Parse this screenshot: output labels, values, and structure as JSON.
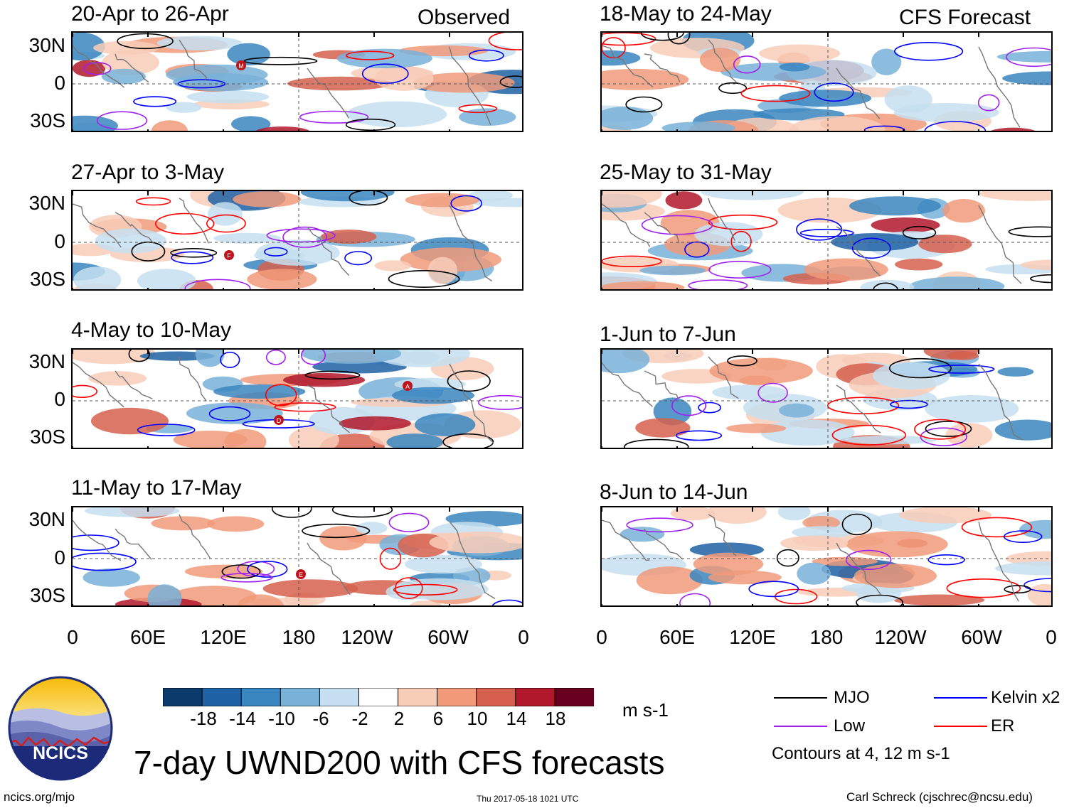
{
  "header": {
    "observed_label": "Observed",
    "forecast_label": "CFS Forecast"
  },
  "panels": [
    {
      "title": "20-Apr to 26-Apr"
    },
    {
      "title": "27-Apr to 3-May"
    },
    {
      "title": "4-May to 10-May"
    },
    {
      "title": "11-May to 17-May"
    },
    {
      "title": "18-May to 24-May"
    },
    {
      "title": "25-May to 31-May"
    },
    {
      "title": "1-Jun to 7-Jun"
    },
    {
      "title": "8-Jun to 14-Jun"
    }
  ],
  "lat_labels": [
    "30N",
    "0",
    "30S"
  ],
  "lon_labels": [
    "0",
    "60E",
    "120E",
    "180",
    "120W",
    "60W",
    "0"
  ],
  "colorbar": {
    "labels": [
      "-18",
      "-14",
      "-10",
      "-6",
      "-2",
      "2",
      "6",
      "10",
      "14",
      "18"
    ],
    "units": "m s-1",
    "colors": [
      "#0b3a6b",
      "#1f62a5",
      "#3a86c0",
      "#79b2d8",
      "#c6dff0",
      "#ffffff",
      "#f8cdb8",
      "#f09a7a",
      "#d6604d",
      "#b2182b",
      "#67001f"
    ]
  },
  "legend": {
    "items": [
      {
        "label": "MJO",
        "color": "#000000"
      },
      {
        "label": "Kelvin x2",
        "color": "#0000ff"
      },
      {
        "label": "Low",
        "color": "#a020f0"
      },
      {
        "label": "ER",
        "color": "#ff0000"
      }
    ],
    "contour_note": "Contours at 4, 12 m s-1"
  },
  "title": "7-day UWND200 with CFS forecasts",
  "logo": {
    "text": "NCICS"
  },
  "footer": {
    "url": "ncics.org/mjo",
    "timestamp": "Thu 2017-05-18 1021 UTC",
    "author": "Carl Schreck (cjschrec@ncsu.edu)"
  },
  "storm_markers": [
    "M",
    "F",
    "A",
    "D",
    "E"
  ]
}
